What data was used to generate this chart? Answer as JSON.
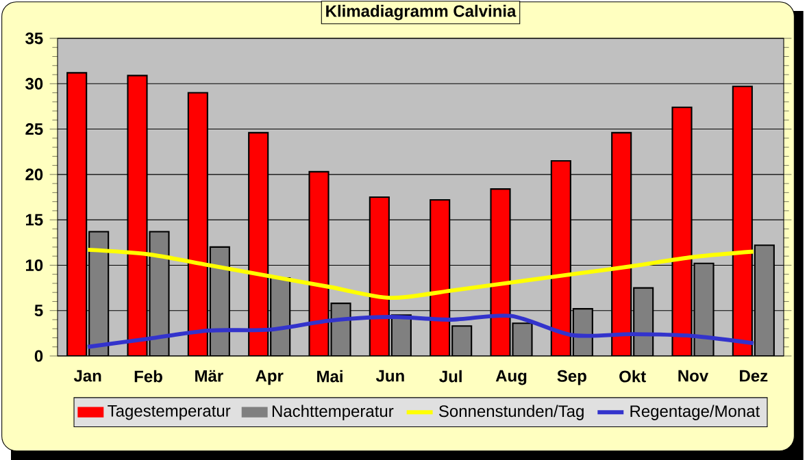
{
  "chart_data": {
    "type": "bar",
    "title": "Klimadiagramm Calvinia",
    "categories": [
      "Jan",
      "Feb",
      "Mär",
      "Apr",
      "Mai",
      "Jun",
      "Jul",
      "Aug",
      "Sep",
      "Okt",
      "Nov",
      "Dez"
    ],
    "series": [
      {
        "name": "Tagestemperatur",
        "color": "#ff0000",
        "values": [
          31.2,
          30.9,
          29.0,
          24.6,
          20.3,
          17.5,
          17.2,
          18.4,
          21.5,
          24.6,
          27.4,
          29.7
        ]
      },
      {
        "name": "Nachttemperatur",
        "color": "#808080",
        "values": [
          13.7,
          13.7,
          12.0,
          8.6,
          5.8,
          4.5,
          3.3,
          3.6,
          5.2,
          7.5,
          10.2,
          12.2
        ]
      },
      {
        "name": "Sonnenstunden/Tag",
        "type": "line",
        "color": "#ffff00",
        "values": [
          11.7,
          11.2,
          10.0,
          8.8,
          7.6,
          6.4,
          7.2,
          8.1,
          9.0,
          9.9,
          10.9,
          11.5
        ]
      },
      {
        "name": "Regentage/Monat",
        "type": "line",
        "color": "#3333cc",
        "values": [
          1.0,
          1.9,
          2.8,
          2.9,
          3.9,
          4.3,
          4.0,
          4.4,
          2.3,
          2.4,
          2.2,
          1.4
        ]
      }
    ],
    "ylim": [
      0,
      35
    ],
    "yticks": [
      0,
      5,
      10,
      15,
      20,
      25,
      30,
      35
    ],
    "grid": "y",
    "legend": "bottom"
  }
}
